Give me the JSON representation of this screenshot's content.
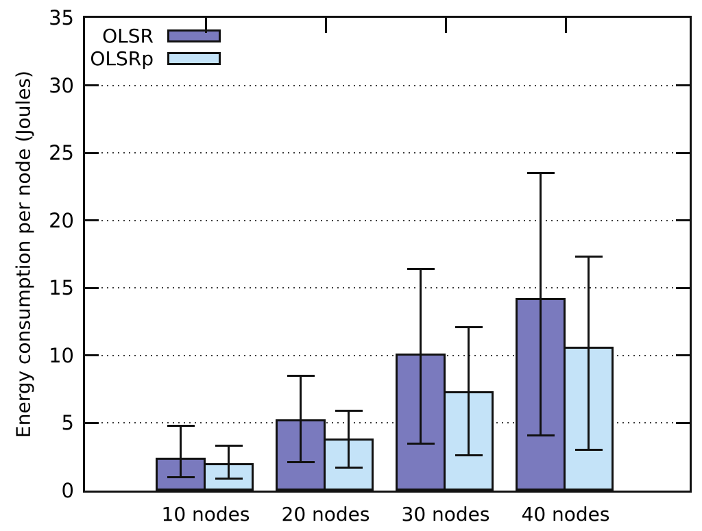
{
  "chart_data": {
    "type": "bar",
    "title": "",
    "xlabel": "",
    "ylabel": "Energy consumption per node (Joules)",
    "categories": [
      "10 nodes",
      "20 nodes",
      "30 nodes",
      "40 nodes"
    ],
    "series": [
      {
        "name": "OLSR",
        "color": "#7A7ABE",
        "values": [
          2.3,
          5.1,
          10.0,
          14.1
        ],
        "err_low": [
          1.0,
          2.1,
          3.5,
          4.1
        ],
        "err_high": [
          4.8,
          8.5,
          16.4,
          23.5
        ]
      },
      {
        "name": "OLSRp",
        "color": "#C4E3F8",
        "values": [
          1.9,
          3.7,
          7.2,
          10.5
        ],
        "err_low": [
          0.9,
          1.7,
          2.6,
          3.0
        ],
        "err_high": [
          3.3,
          5.9,
          12.1,
          17.3
        ]
      }
    ],
    "ylim": [
      0,
      35
    ],
    "yticks": [
      0,
      5,
      10,
      15,
      20,
      25,
      30,
      35
    ],
    "grid": "dotted horizontal lines at y ticks",
    "legend_position": "top-left inside plot",
    "error_bars": true,
    "axis_color": "#111111",
    "grid_color": "#3c3c3c",
    "background": "#ffffff"
  }
}
